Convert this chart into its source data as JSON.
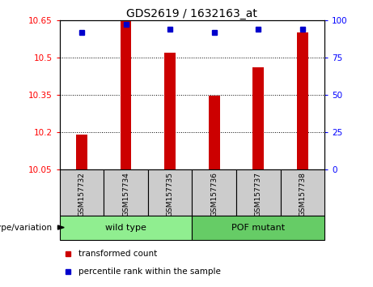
{
  "title": "GDS2619 / 1632163_at",
  "samples": [
    "GSM157732",
    "GSM157734",
    "GSM157735",
    "GSM157736",
    "GSM157737",
    "GSM157738"
  ],
  "transformed_counts": [
    10.19,
    10.648,
    10.52,
    10.345,
    10.46,
    10.6
  ],
  "percentile_ranks": [
    92,
    97,
    94,
    92,
    94,
    94
  ],
  "ylim_left": [
    10.05,
    10.65
  ],
  "ylim_right": [
    0,
    100
  ],
  "yticks_left": [
    10.05,
    10.2,
    10.35,
    10.5,
    10.65
  ],
  "yticks_right": [
    0,
    25,
    50,
    75,
    100
  ],
  "bar_color": "#cc0000",
  "dot_color": "#0000cc",
  "groups": [
    {
      "label": "wild type",
      "indices": [
        0,
        1,
        2
      ],
      "color": "#90EE90"
    },
    {
      "label": "POF mutant",
      "indices": [
        3,
        4,
        5
      ],
      "color": "#66CC66"
    }
  ],
  "group_label": "genotype/variation",
  "legend_red": "transformed count",
  "legend_blue": "percentile rank within the sample",
  "sample_box_color": "#cccccc",
  "plot_bg": "#ffffff"
}
